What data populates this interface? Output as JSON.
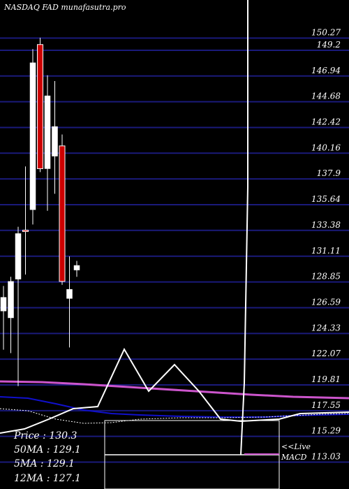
{
  "watermark": "NASDAQ FAD munafasutra.pro",
  "legend": {
    "price": "Price   : 130.3",
    "ma50": "50MA : 129.1",
    "ma5": "5MA : 129.1",
    "ma12": "12MA : 127.1"
  },
  "macd_label_1": "<<Live",
  "macd_label_2": "MACD",
  "colors": {
    "background": "#000000",
    "grid": "#1a1a7a",
    "up_candle": "#ffffff",
    "down_candle": "#cc0000",
    "ma_pink": "#cc55cc",
    "ma_blue": "#1010cc"
  },
  "chart_data": {
    "type": "candlestick",
    "y_axis_side": "right",
    "ylim": [
      112,
      152
    ],
    "y_ticks": [
      "150.27",
      "149.2",
      "146.94",
      "144.68",
      "142.42",
      "140.16",
      "137.9",
      "135.64",
      "133.38",
      "131.11",
      "128.85",
      "126.59",
      "124.33",
      "122.07",
      "119.81",
      "117.55",
      "115.29",
      "113.03"
    ],
    "candles": [
      {
        "open": 126.3,
        "high": 128.5,
        "low": 122.9,
        "close": 127.5
      },
      {
        "open": 125.7,
        "high": 129.3,
        "low": 122.6,
        "close": 128.9
      },
      {
        "open": 129.1,
        "high": 133.7,
        "low": 119.7,
        "close": 133.1
      },
      {
        "open": 133.4,
        "high": 139.0,
        "low": 129.5,
        "close": 133.3
      },
      {
        "open": 135.2,
        "high": 149.3,
        "low": 133.9,
        "close": 148.1
      },
      {
        "open": 149.7,
        "high": 150.3,
        "low": 138.5,
        "close": 138.8
      },
      {
        "open": 138.8,
        "high": 147.0,
        "low": 135.1,
        "close": 145.2
      },
      {
        "open": 139.9,
        "high": 146.5,
        "low": 136.6,
        "close": 142.5
      },
      {
        "open": 140.8,
        "high": 141.8,
        "low": 128.6,
        "close": 128.9
      },
      {
        "open": 127.4,
        "high": 131.1,
        "low": 123.1,
        "close": 128.2
      },
      {
        "open": 129.9,
        "high": 130.7,
        "low": 129.3,
        "close": 130.3
      }
    ]
  }
}
